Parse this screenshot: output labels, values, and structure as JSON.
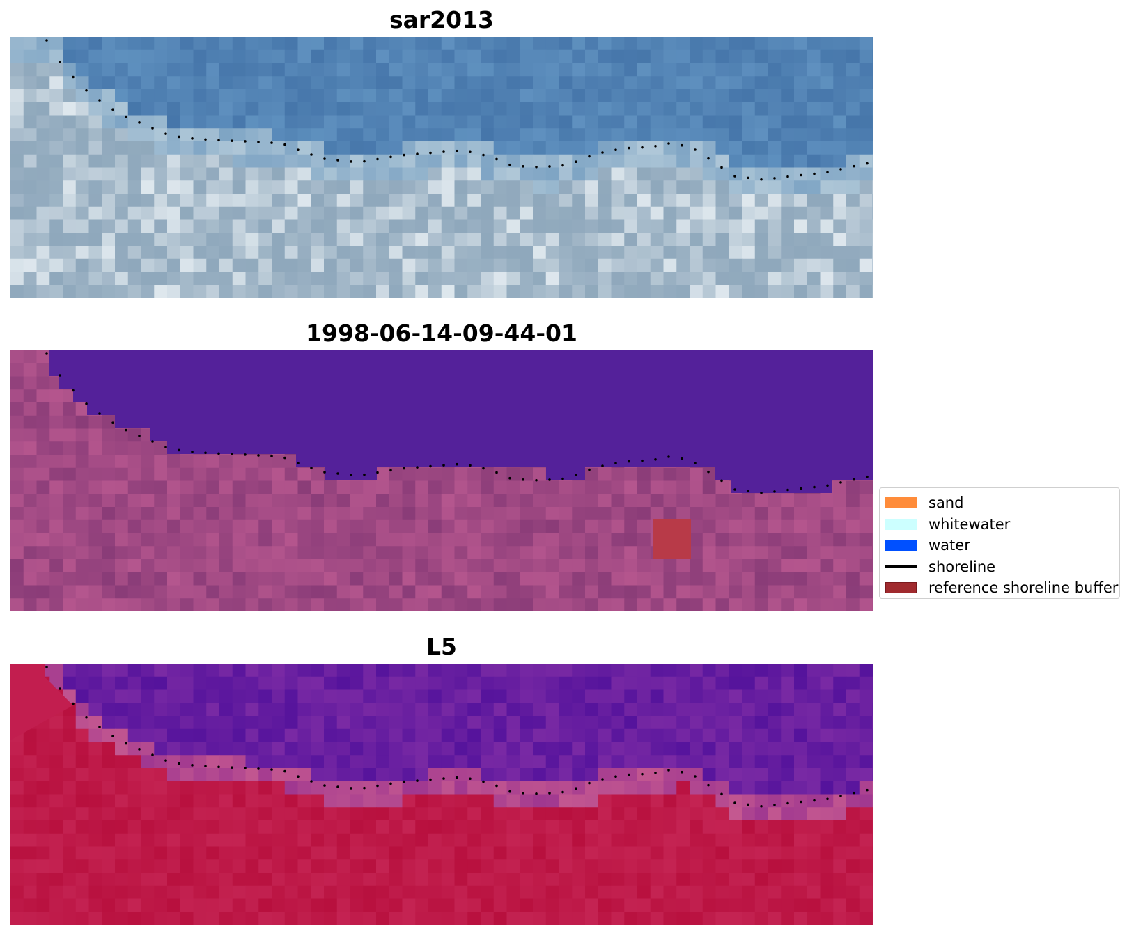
{
  "panels": [
    {
      "title": "sar2013",
      "colors": {
        "top": "#4a7bae",
        "bottom": "#a4b6c8",
        "highlight": "#e8f2f6"
      }
    },
    {
      "title": "1998-06-14-09-44-01",
      "colors": {
        "water": "#54219a",
        "land": "#9a4880",
        "highlight": "#bf5c93"
      }
    },
    {
      "title": "L5",
      "colors": {
        "water": "#5b1aa0",
        "land": "#c21e4f",
        "edge": "#b04594"
      }
    }
  ],
  "legend": {
    "items": [
      {
        "label": "sand",
        "type": "patch",
        "color": "#ff8c3a"
      },
      {
        "label": "whitewater",
        "type": "patch",
        "color": "#ccffff"
      },
      {
        "label": "water",
        "type": "patch",
        "color": "#0050ff"
      },
      {
        "label": "shoreline",
        "type": "line",
        "color": "#000000"
      },
      {
        "label": "reference shoreline buffer",
        "type": "patch",
        "color": "#a02a2e"
      }
    ]
  }
}
